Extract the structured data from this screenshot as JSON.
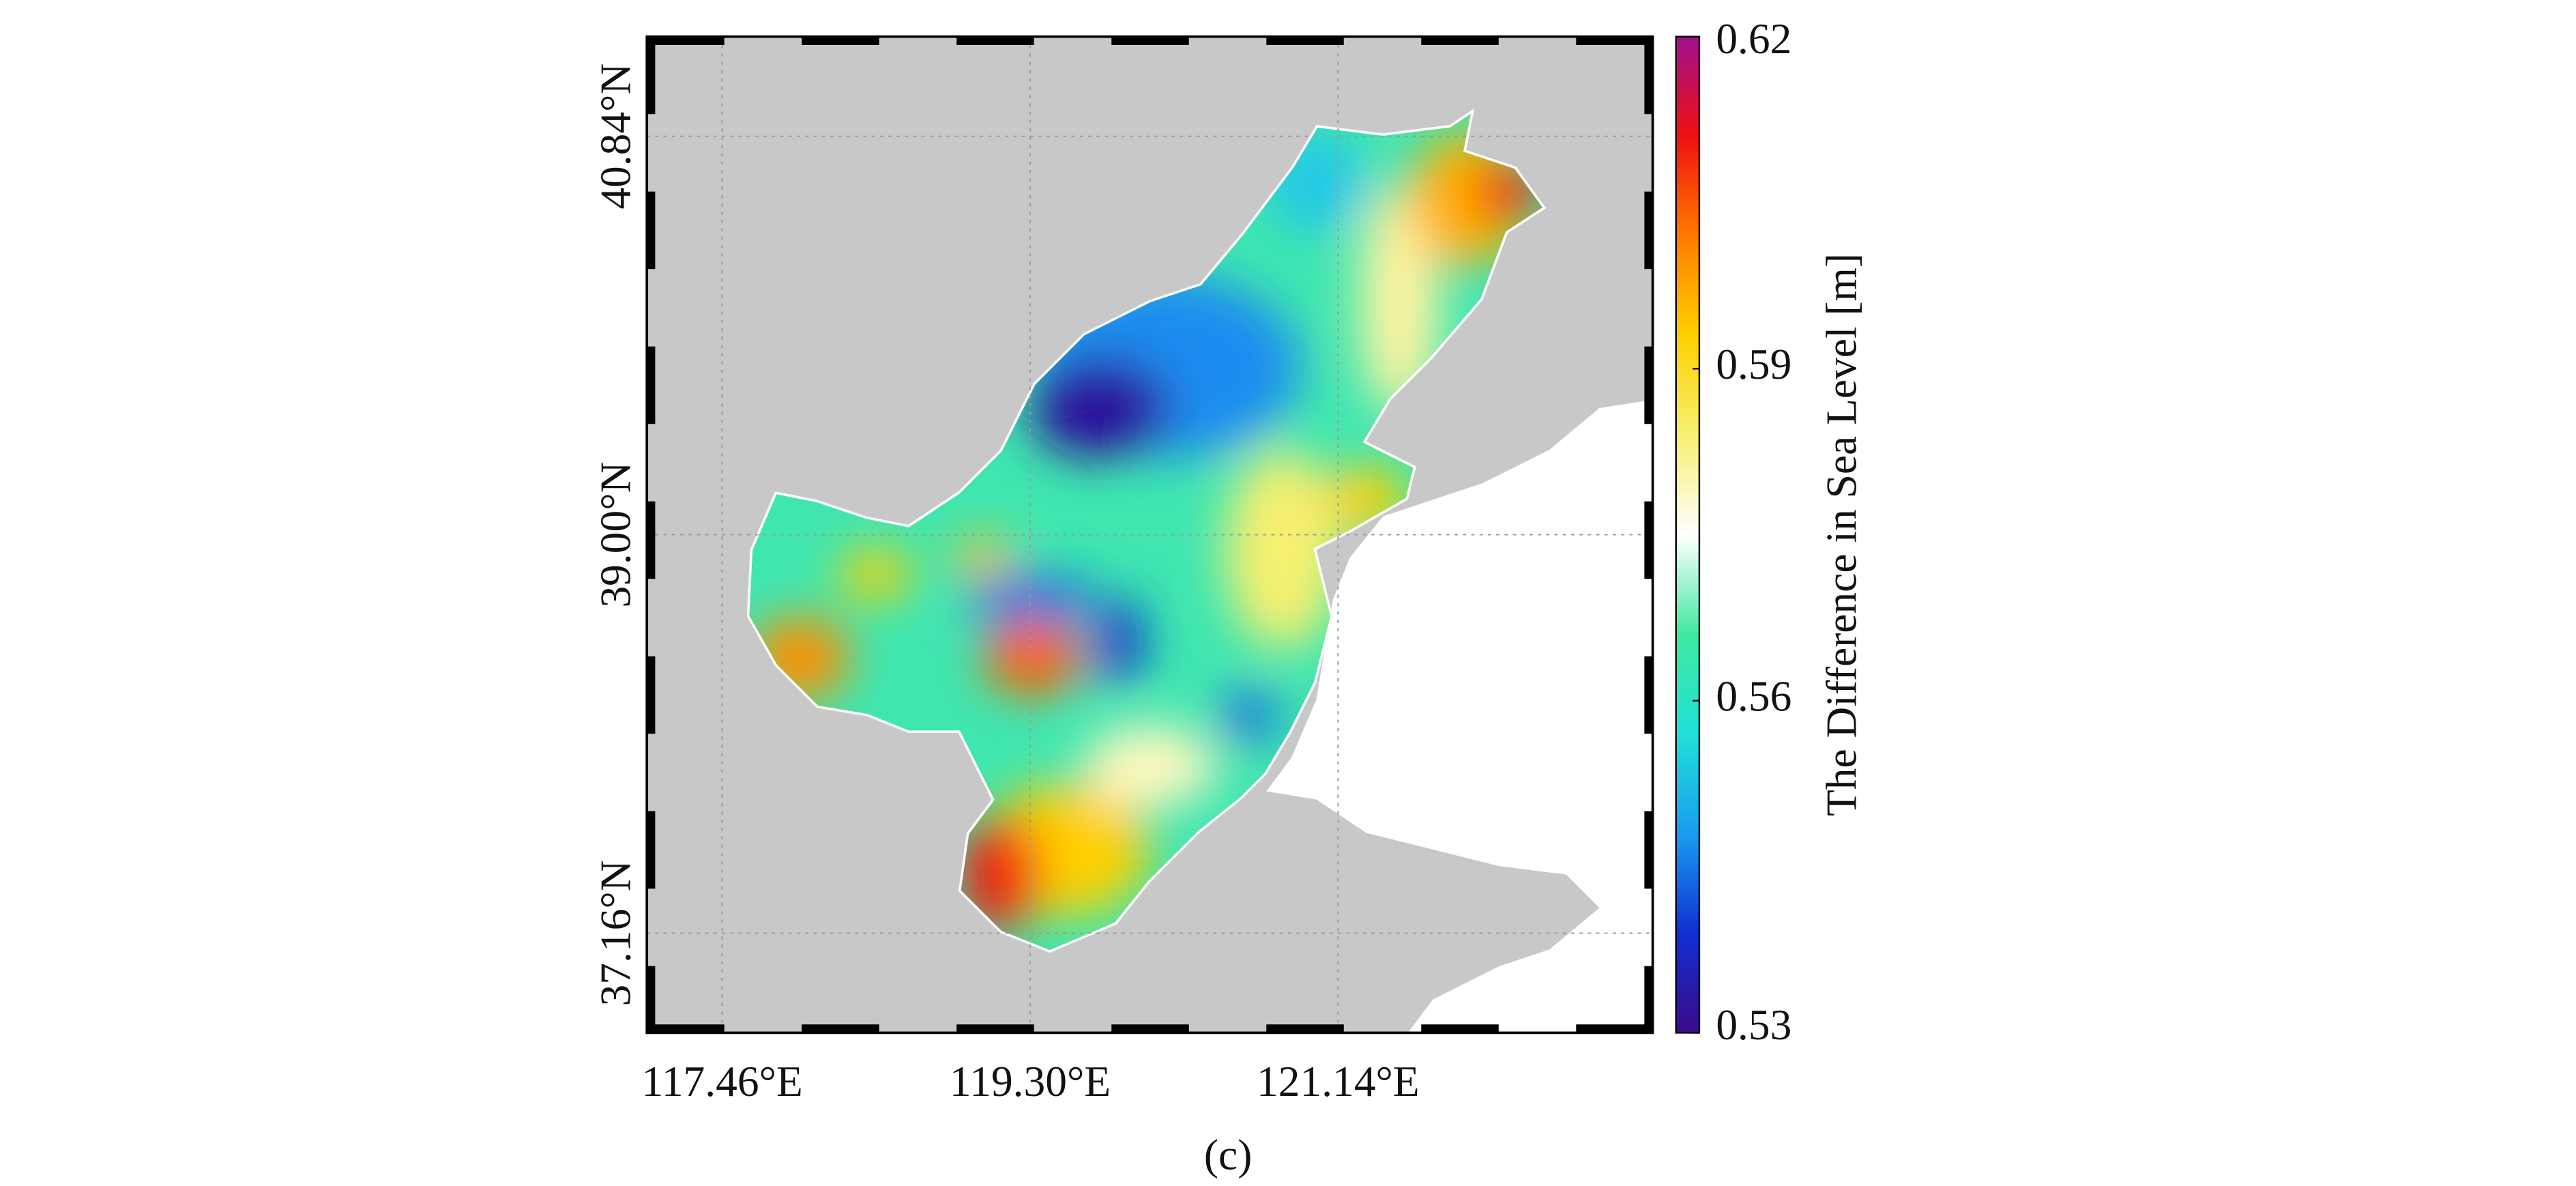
{
  "chart_data": {
    "type": "map",
    "caption": "(c)",
    "colorbar_label": "The Difference in Sea Level [m]",
    "xlim": [
      117.01,
      123.02
    ],
    "xticks": [
      {
        "value": 117.46,
        "label": "117.46°E"
      },
      {
        "value": 119.3,
        "label": "119.30°E"
      },
      {
        "value": 121.14,
        "label": "121.14°E"
      }
    ],
    "ylim": [
      36.7,
      41.3
    ],
    "yticks": [
      {
        "value": 37.16,
        "label": "37.16°N"
      },
      {
        "value": 39.0,
        "label": "39.00°N"
      },
      {
        "value": 40.84,
        "label": "40.84°N"
      }
    ],
    "clim": [
      0.53,
      0.62
    ],
    "cticks": [
      0.53,
      0.56,
      0.59,
      0.62
    ],
    "colormap": [
      "#3b0a8c",
      "#1030d0",
      "#1a9cf0",
      "#20e0d8",
      "#40e8a0",
      "#ffffff",
      "#f6f070",
      "#ffd000",
      "#ff7a00",
      "#f01010",
      "#a0108f"
    ],
    "grid": true
  }
}
